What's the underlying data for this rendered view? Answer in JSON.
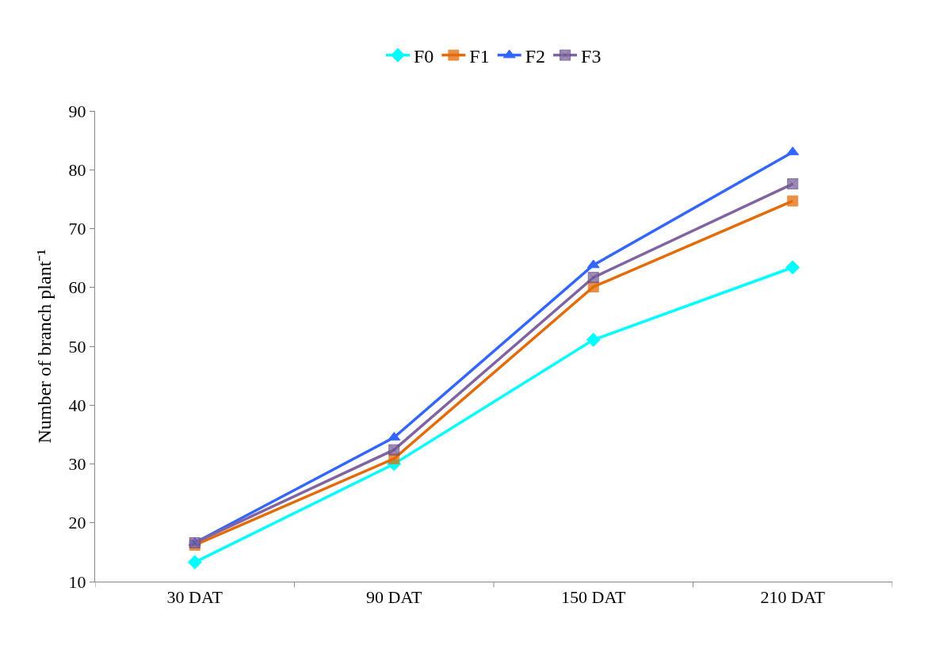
{
  "chart_data": {
    "type": "line",
    "ylabel": "Number of branch plant⁻¹",
    "categories": [
      "30 DAT",
      "90 DAT",
      "150 DAT",
      "210 DAT"
    ],
    "series": [
      {
        "name": "F0",
        "color": "#00ffff",
        "marker": "diamond",
        "values": [
          13.3,
          30.0,
          51.1,
          63.4
        ]
      },
      {
        "name": "F1",
        "color": "#e36c09",
        "marker": "square",
        "values": [
          16.2,
          30.9,
          60.1,
          74.7
        ]
      },
      {
        "name": "F2",
        "color": "#3366ff",
        "marker": "triangle",
        "values": [
          16.6,
          34.5,
          63.8,
          83.0
        ]
      },
      {
        "name": "F3",
        "color": "#8064a2",
        "marker": "cross",
        "values": [
          16.6,
          32.4,
          61.7,
          77.6
        ]
      }
    ],
    "ylim": [
      10,
      90
    ],
    "yticks": [
      10,
      20,
      30,
      40,
      50,
      60,
      70,
      80,
      90
    ],
    "legend": "top",
    "line_style": "solid"
  }
}
